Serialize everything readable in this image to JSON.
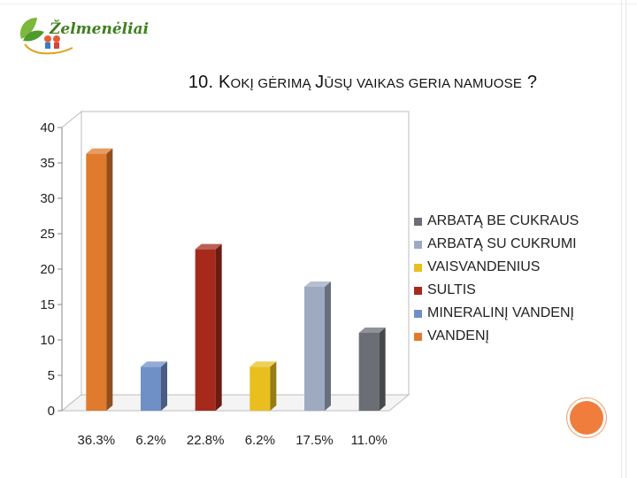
{
  "slide": {
    "logo_text": "Želmenėliai",
    "title_big_1": "10. K",
    "title_small_1": "okį gėrimą ",
    "title_big_2": "J",
    "title_small_2": "ūsų vaikas geria namuose",
    "title_tail": " ?"
  },
  "colors": {
    "orange": "#e07a2d",
    "blue": "#6f8fc7",
    "darkred": "#a52a1c",
    "yellow": "#e8bf1f",
    "lightgray": "#9eaac0",
    "darkgray": "#6b6e74",
    "accent": "#f07d3c"
  },
  "chart_data": {
    "type": "bar",
    "categories": [
      "36.3%",
      "6.2%",
      "22.8%",
      "6.2%",
      "17.5%",
      "11.0%"
    ],
    "values": [
      36.3,
      6.2,
      22.8,
      6.2,
      17.5,
      11.0
    ],
    "series_names": [
      "VANDENĮ",
      "MINERALINĮ VANDENĮ",
      "SULTIS",
      "VAISVANDENIUS",
      "ARBATĄ SU CUKRUMI",
      "ARBATĄ BE CUKRAUS"
    ],
    "bar_colors": [
      "#e07a2d",
      "#6f8fc7",
      "#a52a1c",
      "#e8bf1f",
      "#9eaac0",
      "#6b6e74"
    ],
    "ylim": [
      0,
      40
    ],
    "yticks": [
      0,
      5,
      10,
      15,
      20,
      25,
      30,
      35,
      40
    ],
    "legend": [
      {
        "label": "ARBATĄ BE CUKRAUS",
        "color": "#6b6e74"
      },
      {
        "label": "ARBATĄ SU CUKRUMI",
        "color": "#9eaac0"
      },
      {
        "label": "VAISVANDENIUS",
        "color": "#e8bf1f"
      },
      {
        "label": "SULTIS",
        "color": "#a52a1c"
      },
      {
        "label": "MINERALINĮ VANDENĮ",
        "color": "#6f8fc7"
      },
      {
        "label": "VANDENĮ",
        "color": "#e07a2d"
      }
    ],
    "legend_position": "right",
    "grid": false,
    "style": "3d"
  }
}
